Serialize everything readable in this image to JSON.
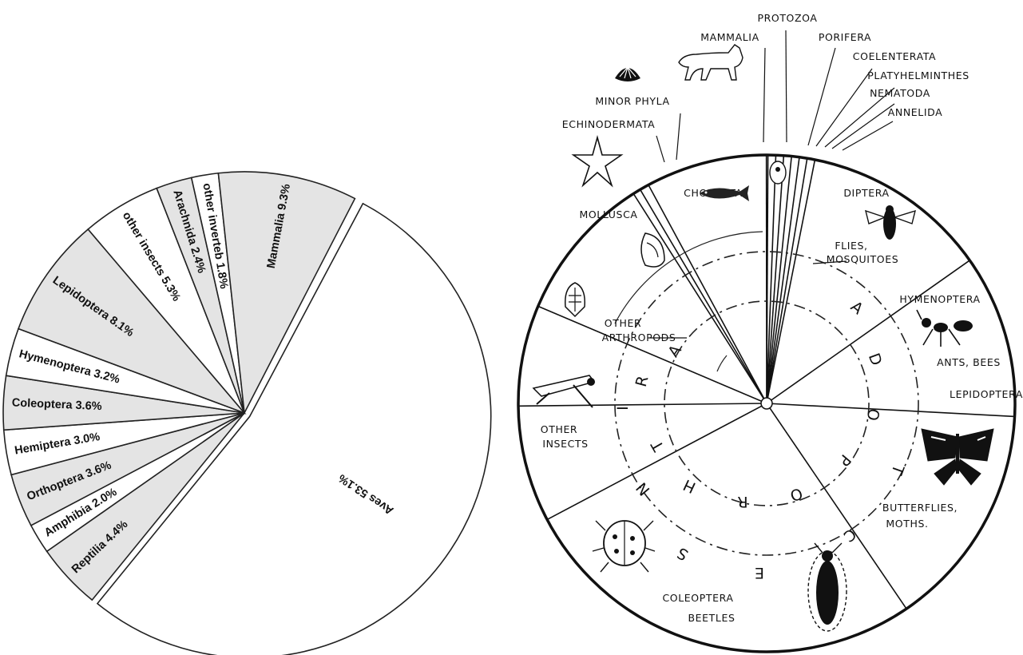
{
  "chart_data": [
    {
      "type": "pie",
      "slices": [
        {
          "label": "Aves 53.1%",
          "value": 53.1,
          "fill": "#ffffff"
        },
        {
          "label": "Reptilia 4.4%",
          "value": 4.4,
          "fill": "#e4e4e4"
        },
        {
          "label": "Amphibia 2.0%",
          "value": 2.0,
          "fill": "#ffffff"
        },
        {
          "label": "Orthoptera 3.6%",
          "value": 3.6,
          "fill": "#e4e4e4"
        },
        {
          "label": "Hemiptera 3.0%",
          "value": 3.0,
          "fill": "#ffffff"
        },
        {
          "label": "Coleoptera 3.6%",
          "value": 3.6,
          "fill": "#e4e4e4"
        },
        {
          "label": "Hymenoptera 3.2%",
          "value": 3.2,
          "fill": "#ffffff"
        },
        {
          "label": "Lepidoptera 8.1%",
          "value": 8.1,
          "fill": "#e4e4e4"
        },
        {
          "label": "other insects 5.3%",
          "value": 5.3,
          "fill": "#ffffff"
        },
        {
          "label": "Arachnida 2.4%",
          "value": 2.4,
          "fill": "#e4e4e4"
        },
        {
          "label": "other inverteb 1.8%",
          "value": 1.8,
          "fill": "#ffffff"
        },
        {
          "label": "Mammalia 9.3%",
          "value": 9.3,
          "fill": "#e4e4e4"
        }
      ]
    },
    {
      "type": "pie",
      "sectors": [
        {
          "label": "PROTOZOA",
          "value": 0.5
        },
        {
          "label": "PORIFERA",
          "value": 0.5
        },
        {
          "label": "COELENTERATA",
          "value": 0.5
        },
        {
          "label": "PLATYHELMINTHES",
          "value": 0.5
        },
        {
          "label": "NEMATODA",
          "value": 0.5
        },
        {
          "label": "ANNELIDA",
          "value": 0.5
        },
        {
          "label": "DIPTERA",
          "value": 12.0,
          "subtitle": "FLIES, MOSQUITOES"
        },
        {
          "label": "HYMENOPTERA",
          "value": 10.5,
          "subtitle": "ANTS, BEES"
        },
        {
          "label": "LEPIDOPTERA",
          "value": 14.5,
          "subtitle": "BUTTERFLIES, MOTHS."
        },
        {
          "label": "COLEOPTERA",
          "value": 26.5,
          "subtitle": "BEETLES"
        },
        {
          "label": "OTHER INSECTS",
          "value": 7.5
        },
        {
          "label": "OTHER ARTHROPODS",
          "value": 6.5
        },
        {
          "label": "MOLLUSCA",
          "value": 9.5
        },
        {
          "label": "ECHINODERMATA",
          "value": 0.5
        },
        {
          "label": "MINOR PHYLA",
          "value": 0.6
        },
        {
          "label": "CHORDATA",
          "value": 7.8
        },
        {
          "label": "MAMMALIA",
          "value": 0.1
        }
      ],
      "ring_labels": {
        "arthropoda": [
          "A",
          "R",
          "T",
          "H",
          "R",
          "O",
          "P",
          "O",
          "D",
          "A"
        ],
        "insecta": [
          "I",
          "N",
          "S",
          "E",
          "C",
          "T"
        ]
      }
    }
  ],
  "icons": [
    "shell-icon",
    "cat-icon",
    "starfish-icon",
    "fish-icon",
    "amoeba-icon",
    "snail-icon",
    "fly-icon",
    "trilobite-icon",
    "ant-icon",
    "grasshopper-icon",
    "butterfly-icon",
    "ladybug-icon",
    "beetle-icon"
  ]
}
